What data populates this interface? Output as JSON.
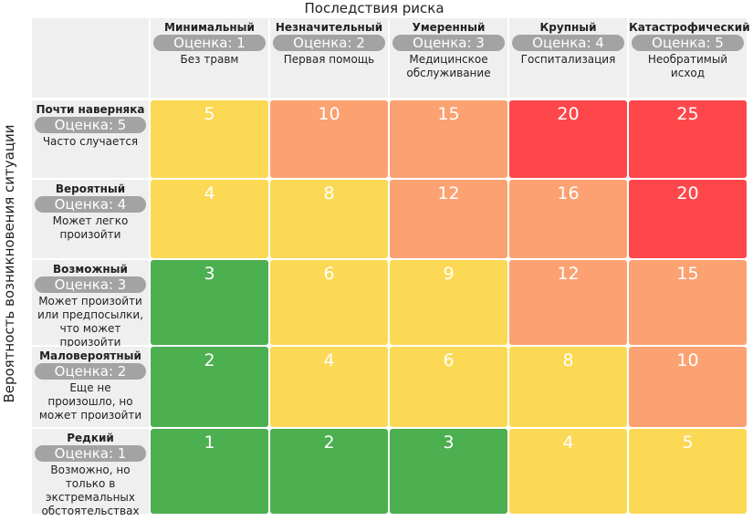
{
  "title": "Последствия риска",
  "side_label": "Вероятность возникновения ситуации",
  "columns": [
    {
      "name": "Минимальный",
      "score": "Оценка: 1",
      "description": "Без травм"
    },
    {
      "name": "Незначительный",
      "score": "Оценка: 2",
      "description": "Первая помощь"
    },
    {
      "name": "Умеренный",
      "score": "Оценка: 3",
      "description": "Медицинское обслуживание"
    },
    {
      "name": "Крупный",
      "score": "Оценка: 4",
      "description": "Госпитализация"
    },
    {
      "name": "Катастрофический",
      "score": "Оценка: 5",
      "description": "Необратимый исход"
    }
  ],
  "rows": [
    {
      "name": "Почти наверняка",
      "score": "Оценка: 5",
      "description": "Часто случается"
    },
    {
      "name": "Вероятный",
      "score": "Оценка: 4",
      "description": "Может легко произойти"
    },
    {
      "name": "Возможный",
      "score": "Оценка: 3",
      "description": "Может произойти или предпосылки, что может произойти"
    },
    {
      "name": "Маловероятный",
      "score": "Оценка: 2",
      "description": "Еще не произошло, но может произойти"
    },
    {
      "name": "Редкий",
      "score": "Оценка: 1",
      "description": "Возможно, но только в экстремальных обстоятельствах"
    }
  ],
  "matrix": [
    [
      {
        "value": 5,
        "color": "#fcd955"
      },
      {
        "value": 10,
        "color": "#fba172"
      },
      {
        "value": 15,
        "color": "#fba172"
      },
      {
        "value": 20,
        "color": "#fe474b"
      },
      {
        "value": 25,
        "color": "#fe474b"
      }
    ],
    [
      {
        "value": 4,
        "color": "#fcd955"
      },
      {
        "value": 8,
        "color": "#fcd955"
      },
      {
        "value": 12,
        "color": "#fba172"
      },
      {
        "value": 16,
        "color": "#fba172"
      },
      {
        "value": 20,
        "color": "#fe474b"
      }
    ],
    [
      {
        "value": 3,
        "color": "#4caf50"
      },
      {
        "value": 6,
        "color": "#fcd955"
      },
      {
        "value": 9,
        "color": "#fcd955"
      },
      {
        "value": 12,
        "color": "#fba172"
      },
      {
        "value": 15,
        "color": "#fba172"
      }
    ],
    [
      {
        "value": 2,
        "color": "#4caf50"
      },
      {
        "value": 4,
        "color": "#fcd955"
      },
      {
        "value": 6,
        "color": "#fcd955"
      },
      {
        "value": 8,
        "color": "#fcd955"
      },
      {
        "value": 10,
        "color": "#fba172"
      }
    ],
    [
      {
        "value": 1,
        "color": "#4caf50"
      },
      {
        "value": 2,
        "color": "#4caf50"
      },
      {
        "value": 3,
        "color": "#4caf50"
      },
      {
        "value": 4,
        "color": "#fcd955"
      },
      {
        "value": 5,
        "color": "#fcd955"
      }
    ]
  ]
}
